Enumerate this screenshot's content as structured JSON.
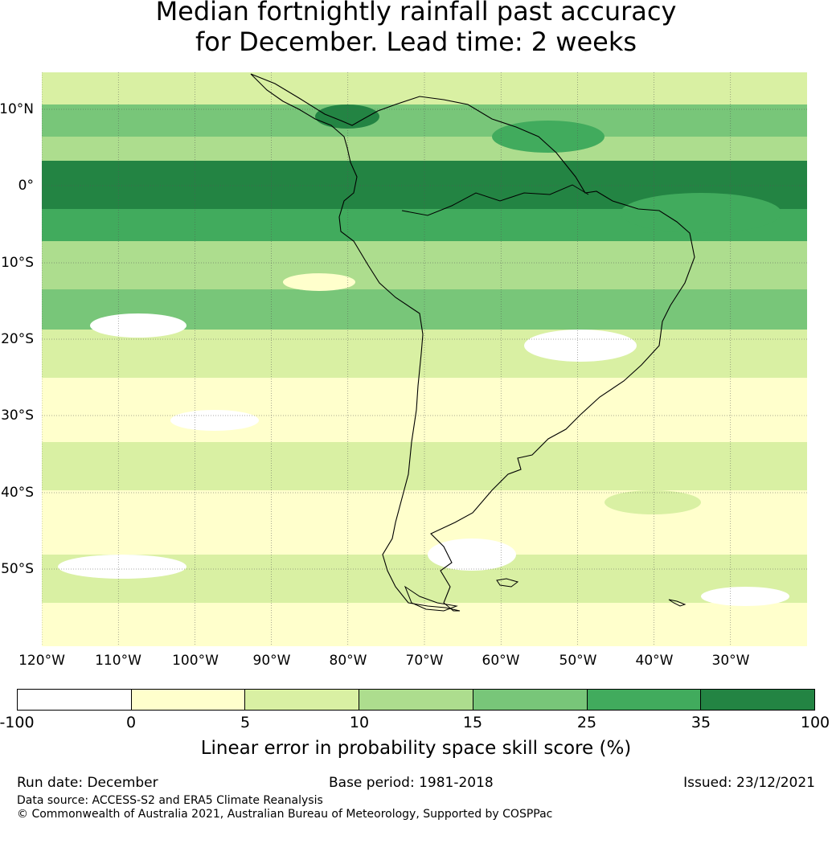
{
  "title": {
    "line1": "Median fortnightly rainfall past accuracy",
    "line2": "for December. Lead time: 2 weeks"
  },
  "map": {
    "lat_labels": [
      "10°N",
      "0°",
      "10°S",
      "20°S",
      "30°S",
      "40°S",
      "50°S"
    ],
    "lon_labels": [
      "120°W",
      "110°W",
      "100°W",
      "90°W",
      "80°W",
      "70°W",
      "60°W",
      "50°W",
      "40°W",
      "30°W"
    ],
    "region": "South America",
    "coast_color": "#000000"
  },
  "colorbar": {
    "ticks": [
      "-100",
      "0",
      "5",
      "10",
      "15",
      "25",
      "35",
      "100"
    ],
    "colors": [
      "#ffffff",
      "#ffffcc",
      "#d9f0a3",
      "#addd8e",
      "#78c679",
      "#41ab5d",
      "#238443"
    ],
    "label": "Linear error in probability space skill score (%)"
  },
  "footer": {
    "run_date": "Run date: December",
    "base_period": "Base period: 1981-2018",
    "issued": "Issued: 23/12/2021",
    "data_source": "Data source: ACCESS-S2 and ERA5 Climate Reanalysis",
    "copyright": "© Commonwealth of Australia 2021, Australian Bureau of Meteorology, Supported by COSPPac"
  }
}
